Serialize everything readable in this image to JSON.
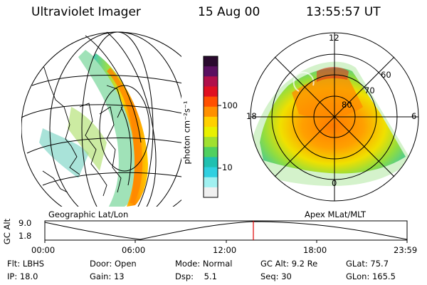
{
  "header": {
    "instrument": "Ultraviolet Imager",
    "date": "15 Aug 00",
    "time": "13:55:57 UT"
  },
  "geo_panel": {
    "label": "Geographic Lat/Lon"
  },
  "polar_panel": {
    "label": "Apex MLat/MLT",
    "mlt_labels": [
      "12",
      "18",
      "6",
      "0"
    ],
    "lat_labels": [
      "60",
      "70",
      "80"
    ]
  },
  "colorbar": {
    "unit_label": "photon cm⁻²s⁻¹",
    "tick_labels": [
      "100",
      "10"
    ],
    "colors": [
      "#2a0a2e",
      "#5a1060",
      "#b0104a",
      "#e01020",
      "#ff5000",
      "#ff9000",
      "#ffd000",
      "#e8f000",
      "#a0e030",
      "#50d060",
      "#20c0b0",
      "#30d0e0",
      "#a0f0f0",
      "#f0f0f0"
    ]
  },
  "altitude_plot": {
    "y_label": "GC Alt",
    "y_ticks": [
      "9.0",
      "1.8"
    ],
    "x_ticks": [
      "00:00",
      "06:00",
      "12:00",
      "18:00",
      "23:59"
    ],
    "marker_color": "#e00000"
  },
  "info": {
    "row1": [
      "Flt: LBHS",
      "Door: Open",
      "Mode: Normal",
      "GC Alt: 9.2 Re",
      "GLat: 75.7"
    ],
    "row2": [
      "IP: 18.0",
      "Gain: 13",
      "Dsp:    5.1",
      "Seq: 30",
      "GLon: 165.5"
    ]
  }
}
